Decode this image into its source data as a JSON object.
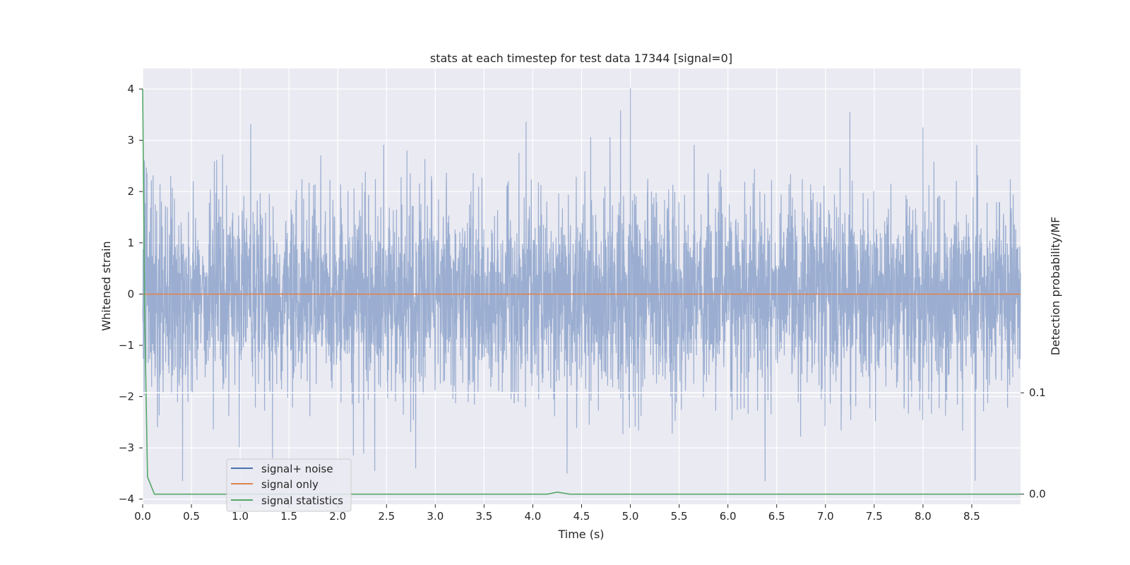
{
  "chart_data": {
    "type": "line",
    "title": "stats at each timestep for test data 17344 [signal=0]",
    "xlabel": "Time (s)",
    "ylabel": "Whitened strain",
    "ylabel_right": "Detection probability/MF",
    "xlim": [
      0.0,
      9.0
    ],
    "ylim": [
      -4.1,
      4.4
    ],
    "ylim_right": [
      -0.01,
      0.42
    ],
    "x_ticks": [
      "0.0",
      "0.5",
      "1.0",
      "1.5",
      "2.0",
      "2.5",
      "3.0",
      "3.5",
      "4.0",
      "4.5",
      "5.0",
      "5.5",
      "6.0",
      "6.5",
      "7.0",
      "7.5",
      "8.0",
      "8.5"
    ],
    "y_ticks": [
      "4",
      "3",
      "2",
      "1",
      "0",
      "−1",
      "−2",
      "−3",
      "−4"
    ],
    "y_ticks_right": [
      "0.1",
      "0.0"
    ],
    "grid": true,
    "legend_position": "lower-left",
    "series": [
      {
        "name": "signal+ noise",
        "color": "#4c72b0",
        "kind": "noise",
        "std": 0.95,
        "range": [
          -3.65,
          4.02
        ],
        "peaks": [
          [
            5.0,
            4.02
          ],
          [
            4.9,
            3.58
          ],
          [
            7.25,
            3.55
          ],
          [
            4.35,
            -3.5
          ],
          [
            6.38,
            -3.65
          ],
          [
            2.38,
            -3.45
          ],
          [
            2.8,
            -3.4
          ],
          [
            1.33,
            -3.2
          ],
          [
            8.0,
            3.25
          ]
        ]
      },
      {
        "name": "signal only",
        "color": "#dd8452",
        "kind": "line",
        "x": [
          0.0,
          9.0
        ],
        "y": [
          0.0,
          0.0
        ]
      },
      {
        "name": "signal statistics",
        "color": "#55a868",
        "kind": "line",
        "axis": "right",
        "x": [
          0.0,
          0.02,
          0.05,
          0.12,
          0.2,
          4.15,
          4.25,
          4.38,
          9.0
        ],
        "y": [
          0.4,
          0.18,
          0.017,
          0.0,
          0.0,
          0.0,
          0.002,
          0.0,
          0.0
        ]
      }
    ],
    "hlines": [
      {
        "axis": "right",
        "y": 0.1,
        "color": "#ffffff"
      }
    ]
  }
}
